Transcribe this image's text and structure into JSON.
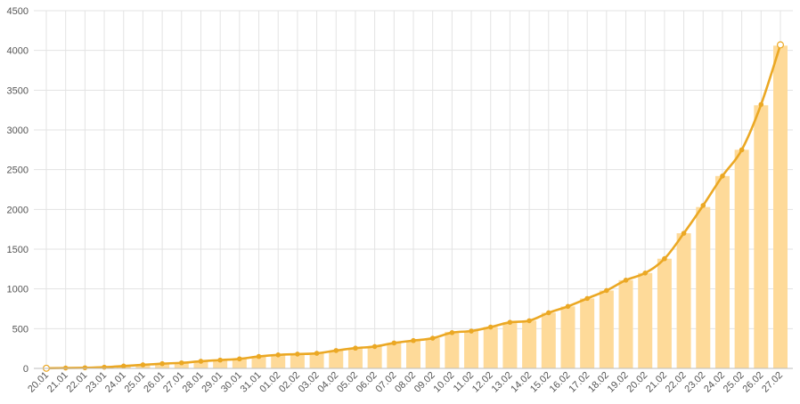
{
  "chart_data": {
    "type": "bar",
    "categories": [
      "20.01",
      "21.01",
      "22.01",
      "23.01",
      "24.01",
      "25.01",
      "26.01",
      "27.01",
      "28.01",
      "29.01",
      "30.01",
      "31.01",
      "01.02",
      "02.02",
      "03.02",
      "04.02",
      "05.02",
      "06.02",
      "07.02",
      "08.02",
      "09.02",
      "10.02",
      "11.02",
      "12.02",
      "13.02",
      "14.02",
      "15.02",
      "16.02",
      "17.02",
      "18.02",
      "19.02",
      "20.02",
      "21.02",
      "22.02",
      "23.02",
      "24.02",
      "25.02",
      "26.02",
      "27.02"
    ],
    "series": [
      {
        "type": "bar",
        "values": [
          5,
          8,
          10,
          15,
          30,
          45,
          60,
          70,
          90,
          105,
          120,
          150,
          175,
          180,
          190,
          225,
          255,
          275,
          320,
          350,
          380,
          460,
          470,
          520,
          580,
          600,
          700,
          780,
          880,
          980,
          1110,
          1200,
          1380,
          1700,
          2030,
          2420,
          2750,
          3310,
          4060
        ]
      },
      {
        "type": "line",
        "values": [
          2,
          5,
          8,
          15,
          30,
          45,
          60,
          70,
          90,
          105,
          120,
          150,
          170,
          180,
          190,
          225,
          255,
          275,
          320,
          350,
          380,
          450,
          470,
          520,
          580,
          600,
          700,
          780,
          880,
          980,
          1110,
          1200,
          1380,
          1700,
          2050,
          2420,
          2750,
          3320,
          4070
        ]
      }
    ],
    "ylim": [
      0,
      4500
    ],
    "yticks": [
      0,
      500,
      1000,
      1500,
      2000,
      2500,
      3000,
      3500,
      4000,
      4500
    ],
    "colors": {
      "bar": "#FEDA99",
      "line": "#EBA824",
      "grid": "#E3E3E3"
    },
    "grid": true
  }
}
